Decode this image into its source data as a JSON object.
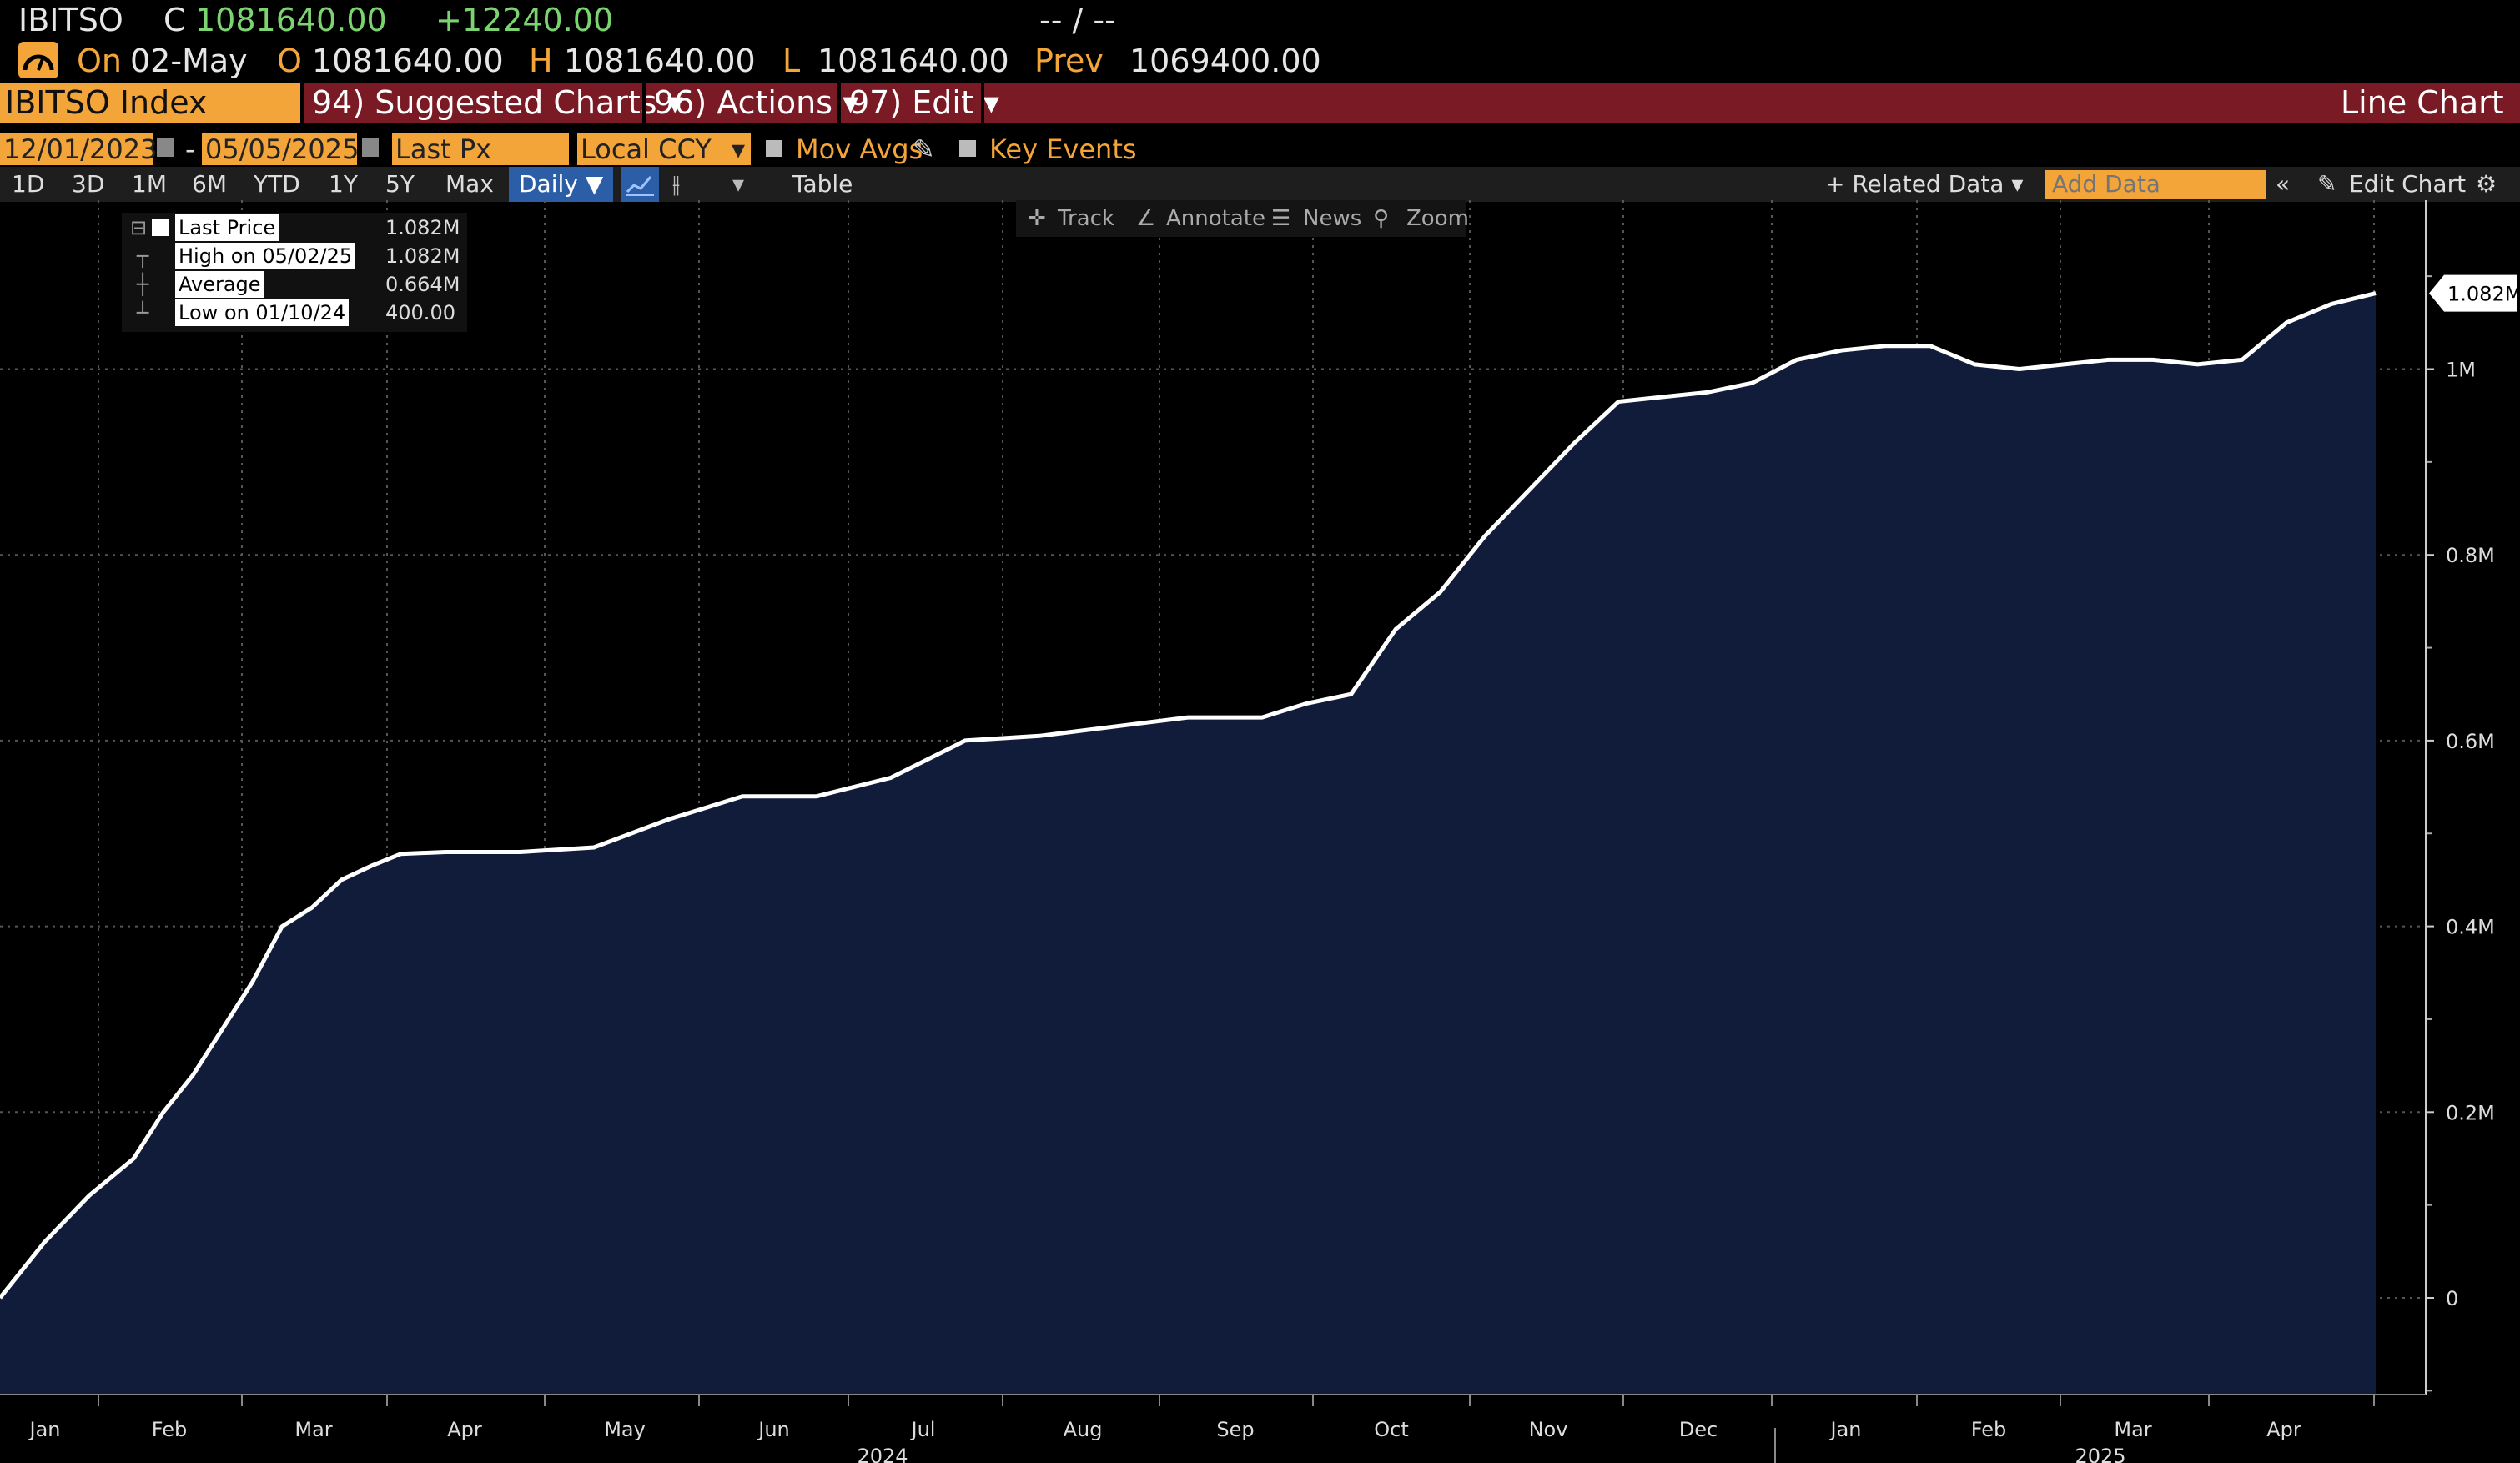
{
  "header": {
    "ticker": "IBITSO",
    "close_label": "C",
    "close_value": "1081640.00",
    "change": "+12240.00",
    "bidask": "-- / --",
    "on_label": "On",
    "date": "02-May",
    "open_label": "O",
    "open_value": "1081640.00",
    "high_label": "H",
    "high_value": "1081640.00",
    "low_label": "L",
    "low_value": "1081640.00",
    "prev_label": "Prev",
    "prev_value": "1069400.00"
  },
  "menubar": {
    "security": "IBITSO Index",
    "suggested": "94) Suggested Charts ▾",
    "actions": "96) Actions ▾",
    "edit": "97) Edit ▾",
    "title": "Line Chart"
  },
  "controls": {
    "start_date": "12/01/2023",
    "dash": "-",
    "end_date": "05/05/2025",
    "field": "Last Px",
    "currency": "Local CCY",
    "mov_avgs": "Mov Avgs",
    "key_events": "Key Events"
  },
  "periods": [
    "1D",
    "3D",
    "1M",
    "6M",
    "YTD",
    "1Y",
    "5Y",
    "Max"
  ],
  "frequency": "Daily ▼",
  "table_label": "Table",
  "related_data": "+ Related Data ▾",
  "add_data_placeholder": "Add Data",
  "edit_chart": "Edit Chart",
  "chart_toolbar": {
    "track": "Track",
    "annotate": "Annotate",
    "news": "News",
    "zoom": "Zoom"
  },
  "legend": [
    {
      "name": "Last Price",
      "value": "1.082M"
    },
    {
      "name": "High on 05/02/25",
      "value": "1.082M"
    },
    {
      "name": "Average",
      "value": "0.664M"
    },
    {
      "name": "Low on 01/10/24",
      "value": "400.00"
    }
  ],
  "colors": {
    "accent_orange": "#f3a53a",
    "menu_red": "#7a1a24",
    "area_fill": "#101c3a",
    "line": "#ffffff",
    "up_green": "#7bd46f"
  },
  "chart_data": {
    "type": "area",
    "title": "",
    "xlabel": "",
    "ylabel": "",
    "ylim": [
      -100000,
      1200000
    ],
    "y_ticks": [
      {
        "value": 0,
        "label": "0"
      },
      {
        "value": 200000,
        "label": "0.2M"
      },
      {
        "value": 400000,
        "label": "0.4M"
      },
      {
        "value": 600000,
        "label": "0.6M"
      },
      {
        "value": 800000,
        "label": "0.8M"
      },
      {
        "value": 1000000,
        "label": "1M"
      }
    ],
    "last_label": "1.082M",
    "x_month_labels": [
      "Jan",
      "Feb",
      "Mar",
      "Apr",
      "May",
      "Jun",
      "Jul",
      "Aug",
      "Sep",
      "Oct",
      "Nov",
      "Dec",
      "Jan",
      "Feb",
      "Mar",
      "Apr"
    ],
    "x_year_labels": [
      {
        "label": "2024",
        "month_index": 6
      },
      {
        "label": "2025",
        "month_index": 13.6
      }
    ],
    "x_range_months": [
      0,
      16.3
    ],
    "grid": true,
    "series": [
      {
        "x": [
          0,
          0.3,
          0.6,
          0.9,
          1.1,
          1.3,
          1.5,
          1.7,
          1.9,
          2.1,
          2.3,
          2.5,
          2.7,
          3,
          3.5,
          4,
          4.5,
          5,
          5.5,
          6,
          6.5,
          7,
          7.5,
          8,
          8.5,
          8.8,
          9.1,
          9.4,
          9.7,
          10,
          10.3,
          10.6,
          10.9,
          11.2,
          11.5,
          11.8,
          12.1,
          12.4,
          12.7,
          13,
          13.3,
          13.6,
          13.9,
          14.2,
          14.5,
          14.8,
          15.1,
          15.4,
          15.7,
          16
        ],
        "y": [
          0,
          60000,
          110000,
          150000,
          200000,
          240000,
          290000,
          340000,
          400000,
          420000,
          450000,
          465000,
          478000,
          480000,
          480000,
          485000,
          515000,
          540000,
          540000,
          560000,
          600000,
          605000,
          615000,
          625000,
          625000,
          640000,
          650000,
          720000,
          760000,
          820000,
          870000,
          920000,
          965000,
          970000,
          975000,
          985000,
          1010000,
          1020000,
          1025000,
          1025000,
          1005000,
          1000000,
          1005000,
          1010000,
          1010000,
          1005000,
          1010000,
          1050000,
          1070000,
          1081640
        ]
      }
    ]
  }
}
